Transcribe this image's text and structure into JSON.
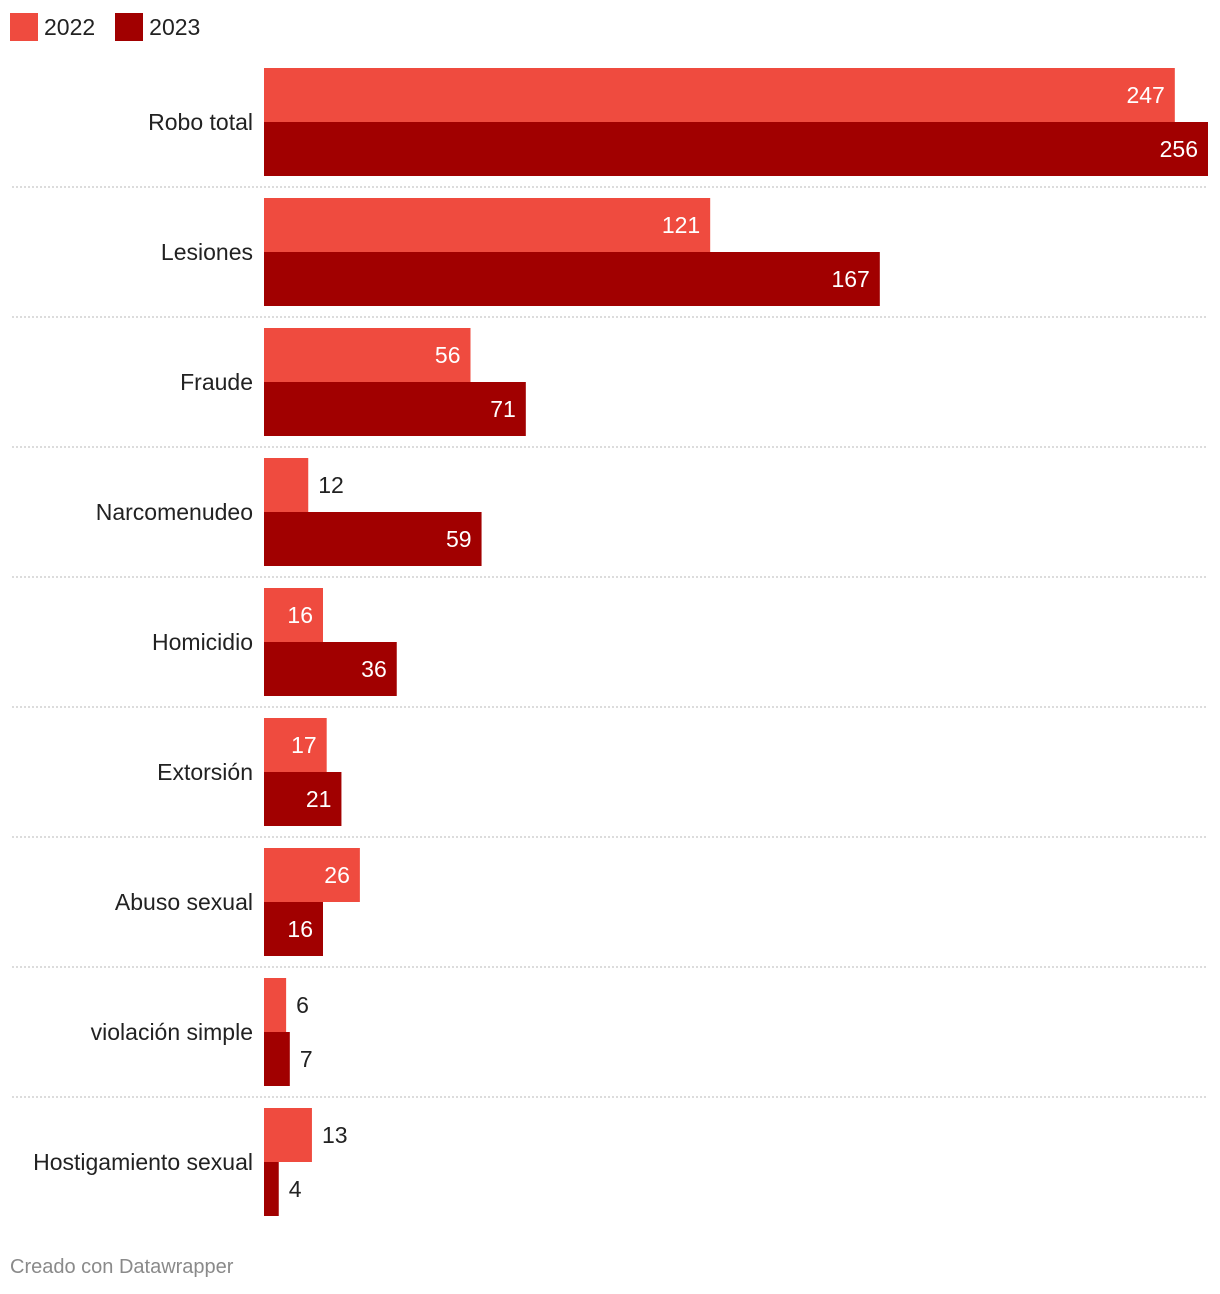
{
  "chart_data": {
    "type": "bar",
    "orientation": "horizontal",
    "categories": [
      "Robo total",
      "Lesiones",
      "Fraude",
      "Narcomenudeo",
      "Homicidio",
      "Extorsión",
      "Abuso sexual",
      "violación simple",
      "Hostigamiento sexual"
    ],
    "series": [
      {
        "name": "2022",
        "color": "#ef4b3f",
        "values": [
          247,
          121,
          56,
          12,
          16,
          17,
          26,
          6,
          13
        ]
      },
      {
        "name": "2023",
        "color": "#a10000",
        "values": [
          256,
          167,
          71,
          59,
          36,
          21,
          16,
          7,
          4
        ]
      }
    ],
    "xlim": [
      0,
      256
    ],
    "legend_position": "top-left",
    "grid": false
  },
  "footer": {
    "credit": "Creado con Datawrapper"
  }
}
